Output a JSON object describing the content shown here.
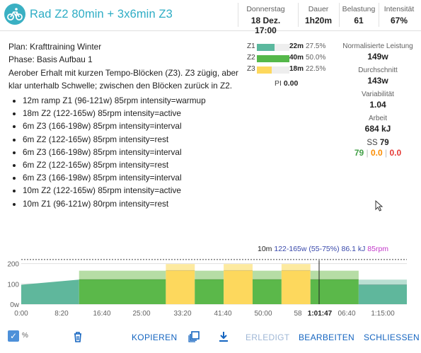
{
  "header": {
    "title": "Rad Z2 80min + 3x6min Z3",
    "stats": [
      {
        "label": "Donnerstag",
        "value": "18 Dez. 17:00"
      },
      {
        "label": "Dauer",
        "value": "1h20m"
      },
      {
        "label": "Belastung",
        "value": "61"
      },
      {
        "label": "Intensität",
        "value": "67%"
      }
    ]
  },
  "description": {
    "plan": "Plan: Krafttraining Winter",
    "phase": "Phase: Basis Aufbau 1",
    "text": "Aerober Erhalt mit kurzen Tempo-Blöcken (Z3). Z3 zügig, aber klar unterhalb Schwelle; zwischen den Blöcken zurück in Z2.",
    "steps": [
      "12m ramp Z1 (96-121w) 85rpm intensity=warmup",
      "18m Z2 (122-165w) 85rpm intensity=active",
      "6m Z3 (166-198w) 85rpm intensity=interval",
      "6m Z2 (122-165w) 85rpm intensity=rest",
      "6m Z3 (166-198w) 85rpm intensity=interval",
      "6m Z2 (122-165w) 85rpm intensity=rest",
      "6m Z3 (166-198w) 85rpm intensity=interval",
      "10m Z2 (122-165w) 85rpm intensity=active",
      "10m Z1 (96-121w) 80rpm intensity=rest"
    ]
  },
  "zones": [
    {
      "label": "Z1",
      "time": "22m",
      "pct": "27.5%",
      "fraction": 0.275,
      "color": "#5bb89e"
    },
    {
      "label": "Z2",
      "time": "40m",
      "pct": "50.0%",
      "fraction": 0.5,
      "color": "#55b84a"
    },
    {
      "label": "Z3",
      "time": "18m",
      "pct": "22.5%",
      "fraction": 0.225,
      "color": "#fdd85d"
    }
  ],
  "pi": {
    "label": "PI",
    "value": "0.00"
  },
  "metrics": [
    {
      "label": "Normalisierte Leistung",
      "value": "149w"
    },
    {
      "label": "Durchschnitt",
      "value": "143w"
    },
    {
      "label": "Variabilität",
      "value": "1.04"
    },
    {
      "label": "Arbeit",
      "value": "684 kJ"
    }
  ],
  "ss": {
    "label": "SS",
    "value": "79",
    "parts": [
      "79",
      "0.0",
      "0.0"
    ]
  },
  "chart_info": {
    "duration": "10m",
    "range": "122-165w (55-75%)",
    "energy": "86.1 kJ",
    "cadence": "85rpm"
  },
  "chart_data": {
    "type": "area",
    "y_ticks": [
      "200",
      "100",
      "0w"
    ],
    "ylim": [
      0,
      230
    ],
    "x_ticks": [
      "0:00",
      "8:20",
      "16:40",
      "25:00",
      "33:20",
      "41:40",
      "50:00",
      "58",
      "1:01:47",
      "06:40",
      "1:15:00"
    ],
    "cursor_label": "1:01:47",
    "segments": [
      {
        "start": 0,
        "end": 12,
        "from": 96,
        "to": 121,
        "zone": "Z1"
      },
      {
        "start": 12,
        "end": 30,
        "low": 122,
        "high": 165,
        "zone": "Z2"
      },
      {
        "start": 30,
        "end": 36,
        "low": 166,
        "high": 198,
        "zone": "Z3"
      },
      {
        "start": 36,
        "end": 42,
        "low": 122,
        "high": 165,
        "zone": "Z2"
      },
      {
        "start": 42,
        "end": 48,
        "low": 166,
        "high": 198,
        "zone": "Z3"
      },
      {
        "start": 48,
        "end": 54,
        "low": 122,
        "high": 165,
        "zone": "Z2"
      },
      {
        "start": 54,
        "end": 60,
        "low": 166,
        "high": 198,
        "zone": "Z3"
      },
      {
        "start": 60,
        "end": 70,
        "low": 122,
        "high": 165,
        "zone": "Z2"
      },
      {
        "start": 70,
        "end": 80,
        "low": 96,
        "high": 121,
        "zone": "Z1"
      }
    ],
    "ftp_line": 220,
    "cursor_minute": 61.8
  },
  "footer": {
    "percent_label": "%",
    "copy": "KOPIEREN",
    "done": "ERLEDIGT",
    "edit": "BEARBEITEN",
    "close": "SCHLIESSEN"
  }
}
